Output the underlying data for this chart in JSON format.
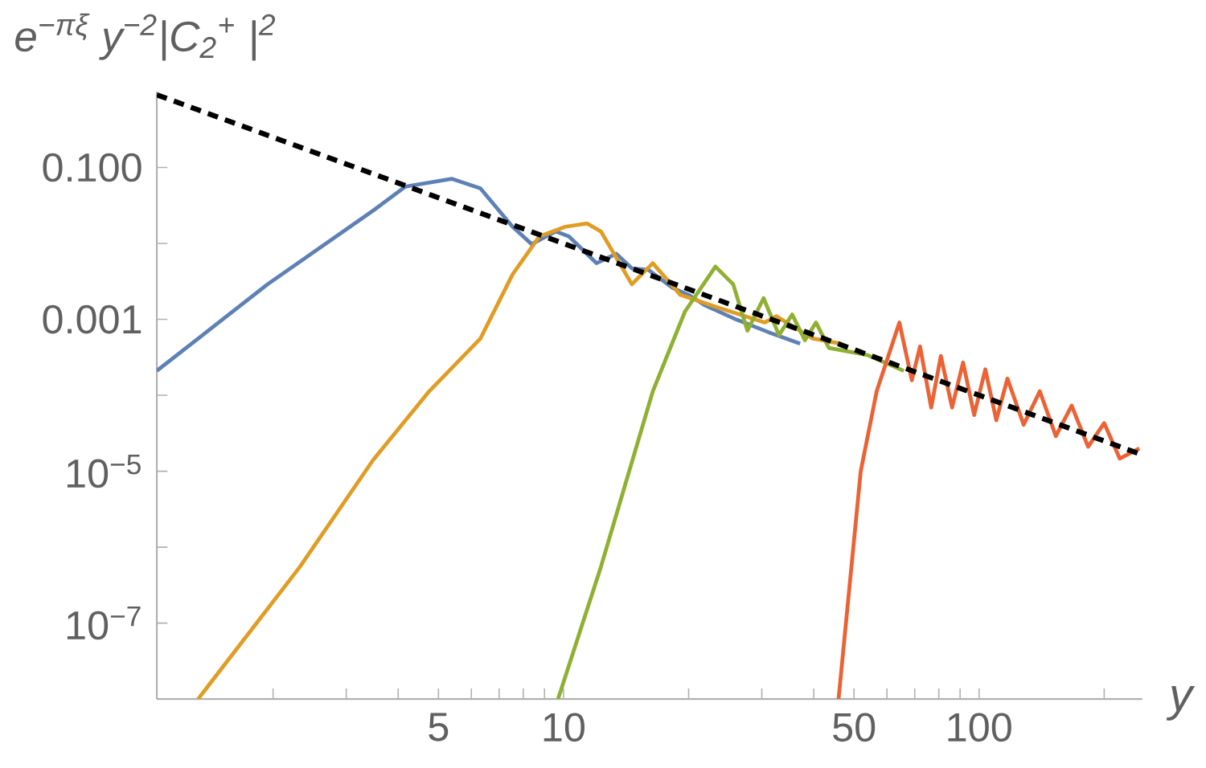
{
  "chart_data": {
    "type": "line",
    "xlabel": "y",
    "ylabel": "e$^{−πξ}$ y$^{−2}$|C$_{2}$$^{+}$ |$^{2}$",
    "log": "xy",
    "grid": false,
    "marker": "none",
    "xlim": [
      1.05,
      247
    ],
    "ylim": [
      1e-08,
      1
    ],
    "xticks": [
      {
        "value": 2,
        "label": null
      },
      {
        "value": 3,
        "label": null
      },
      {
        "value": 4,
        "label": null
      },
      5,
      {
        "value": 6,
        "label": null
      },
      {
        "value": 7,
        "label": null
      },
      {
        "value": 8,
        "label": null
      },
      {
        "value": 9,
        "label": null
      },
      10,
      {
        "value": 20,
        "label": null
      },
      {
        "value": 30,
        "label": null
      },
      {
        "value": 40,
        "label": null
      },
      50,
      {
        "value": 60,
        "label": null
      },
      {
        "value": 70,
        "label": null
      },
      {
        "value": 80,
        "label": null
      },
      {
        "value": 90,
        "label": null
      },
      100,
      {
        "value": 200,
        "label": null
      }
    ],
    "yticks": [
      {
        "value": 1e-07,
        "label": "10$^{−7}$"
      },
      {
        "value": 1e-06,
        "label": null
      },
      {
        "value": 1e-05,
        "label": "10$^{−5}$"
      },
      {
        "value": 0.0001,
        "label": null
      },
      {
        "value": 0.001,
        "label": "0.001"
      },
      {
        "value": 0.01,
        "label": null
      },
      {
        "value": 0.1,
        "label": "0.100"
      }
    ],
    "series": [
      {
        "color": "#5e81b5",
        "x": [
          1.05,
          1.94,
          3.48,
          4.16,
          5.38,
          6.31,
          7.54,
          8.38,
          9.57,
          10.3,
          12.0,
          13.4,
          14.6,
          16.0,
          18.3,
          20.0,
          21.8,
          26.0,
          31.1,
          37.1
        ],
        "values": [
          0.00021,
          0.0029,
          0.027,
          0.056,
          0.071,
          0.053,
          0.0166,
          0.0098,
          0.0144,
          0.0124,
          0.0055,
          0.0073,
          0.0047,
          0.0045,
          0.0026,
          0.0021,
          0.00155,
          0.001,
          0.00068,
          0.00048
        ]
      },
      {
        "color": "#e19c24",
        "x": [
          1.32,
          2.32,
          3.48,
          4.75,
          6.31,
          7.54,
          8.75,
          10.1,
          11.4,
          12.3,
          14.6,
          16.4,
          19.1,
          23.2,
          30.5,
          32.5,
          39.8,
          46.3
        ],
        "values": [
          1e-08,
          5.5e-07,
          1.4e-05,
          0.000113,
          0.00056,
          0.0039,
          0.0124,
          0.0166,
          0.0183,
          0.0144,
          0.0029,
          0.0055,
          0.0021,
          0.00147,
          0.00091,
          0.0011,
          0.00056,
          0.00048
        ]
      },
      {
        "color": "#8fb032",
        "x": [
          9.7,
          12.3,
          16.4,
          19.6,
          23.2,
          25.6,
          27.7,
          30.3,
          33.0,
          35.5,
          38.1,
          40.5,
          43.5,
          53.8,
          65.9
        ],
        "values": [
          1e-08,
          5.5e-07,
          0.000113,
          0.00127,
          0.00496,
          0.0029,
          0.00071,
          0.0019,
          0.00062,
          0.00116,
          0.00053,
          0.00091,
          0.00042,
          0.00034,
          0.00021
        ]
      },
      {
        "color": "#eb6235",
        "x": [
          45.9,
          51.9,
          56.7,
          64.3,
          68.9,
          72.1,
          76.7,
          80.9,
          86.1,
          91.5,
          97.3,
          103.5,
          110,
          117,
          128,
          140,
          153,
          167,
          183,
          200,
          218,
          243
        ],
        "values": [
          1e-08,
          1e-05,
          0.000113,
          0.00091,
          0.000158,
          0.00044,
          6.9e-05,
          0.00033,
          6.9e-05,
          0.00027,
          5.5e-05,
          0.00022,
          4.7e-05,
          0.000166,
          4.1e-05,
          0.000113,
          2.9e-05,
          7.3e-05,
          2.1e-05,
          4.3e-05,
          1.47e-05,
          2e-05
        ]
      },
      {
        "color": "#000000",
        "line_style": "dashed",
        "x": [
          1.05,
          247
        ],
        "values": [
          0.907,
          1.64e-05
        ]
      }
    ]
  }
}
